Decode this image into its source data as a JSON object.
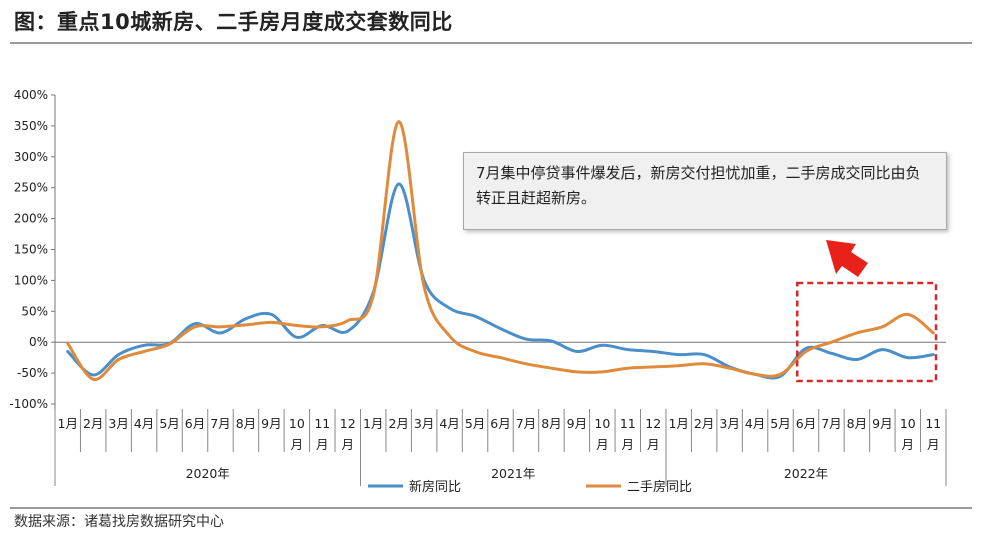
{
  "page": {
    "title": "图：重点10城新房、二手房月度成交套数同比",
    "source": "数据来源：诸葛找房数据研究中心",
    "annotation": "7月集中停贷事件爆发后，新房交付担忧加重，二手房成交同比由负转正且赶超新房。"
  },
  "chart_data": {
    "type": "line",
    "title": "",
    "xlabel": "",
    "ylabel": "",
    "ylim": [
      -100,
      400
    ],
    "ytick_step": 50,
    "y_tick_labels": [
      "400%",
      "350%",
      "300%",
      "250%",
      "200%",
      "150%",
      "100%",
      "50%",
      "0%",
      "-50%",
      "-100%"
    ],
    "categories": [
      "1月",
      "2月",
      "3月",
      "4月",
      "5月",
      "6月",
      "7月",
      "8月",
      "9月",
      "10月",
      "11月",
      "12月",
      "1月",
      "2月",
      "3月",
      "4月",
      "5月",
      "6月",
      "7月",
      "8月",
      "9月",
      "10月",
      "11月",
      "12月",
      "1月",
      "2月",
      "3月",
      "4月",
      "5月",
      "6月",
      "7月",
      "8月",
      "9月",
      "10月",
      "11月"
    ],
    "years": [
      {
        "label": "2020年",
        "start": 0,
        "end": 11
      },
      {
        "label": "2021年",
        "start": 12,
        "end": 23
      },
      {
        "label": "2022年",
        "start": 24,
        "end": 34
      }
    ],
    "series": [
      {
        "name": "新房同比",
        "color": "#4a8fca",
        "values": [
          -15,
          -53,
          -20,
          -5,
          -2,
          30,
          15,
          38,
          45,
          8,
          27,
          18,
          80,
          256,
          100,
          55,
          42,
          22,
          5,
          2,
          -15,
          -5,
          -12,
          -15,
          -20,
          -20,
          -40,
          -52,
          -55,
          -10,
          -18,
          -28,
          -12,
          -25,
          -20
        ]
      },
      {
        "name": "二手房同比",
        "color": "#e08a3c",
        "values": [
          -2,
          -60,
          -28,
          -15,
          -3,
          25,
          25,
          28,
          32,
          27,
          25,
          35,
          75,
          357,
          90,
          10,
          -15,
          -25,
          -35,
          -42,
          -48,
          -48,
          -42,
          -40,
          -38,
          -35,
          -42,
          -52,
          -52,
          -15,
          0,
          15,
          25,
          45,
          15
        ]
      }
    ],
    "legend_position": "bottom",
    "highlight": {
      "type": "dashed-rect",
      "color": "#d62a2a",
      "from_category": 29,
      "to_category": 34
    }
  }
}
